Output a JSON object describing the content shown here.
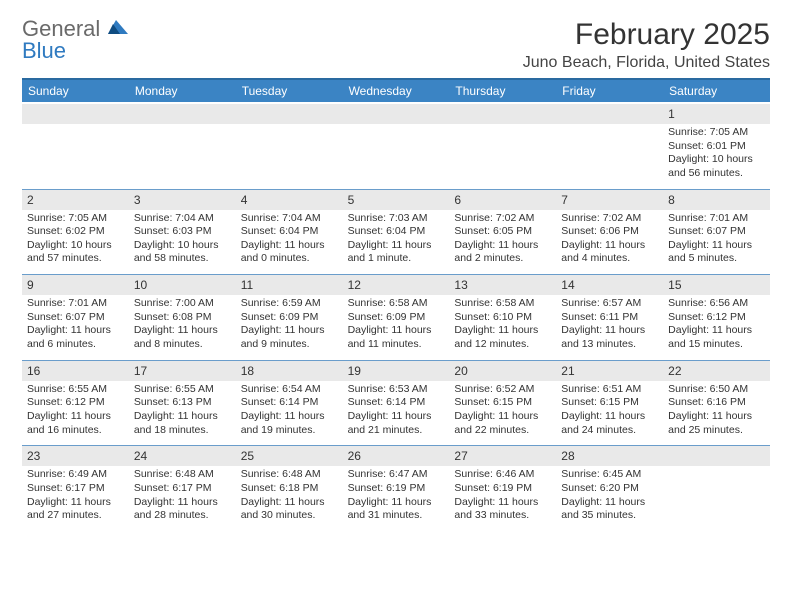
{
  "logo": {
    "text1": "General",
    "text2": "Blue"
  },
  "title": "February 2025",
  "location": "Juno Beach, Florida, United States",
  "colors": {
    "header_bg": "#3b84c4",
    "header_border": "#2a6aa0",
    "row_border": "#6a9dcb",
    "daynum_bg": "#e9e9e9",
    "text": "#333333",
    "logo_gray": "#6a6a6a",
    "logo_blue": "#2f7ac0"
  },
  "dayNames": [
    "Sunday",
    "Monday",
    "Tuesday",
    "Wednesday",
    "Thursday",
    "Friday",
    "Saturday"
  ],
  "grid": {
    "columns": 7,
    "rows": 5,
    "first_day_index": 6,
    "days_in_month": 28
  },
  "days": [
    {
      "n": 1,
      "sunrise": "7:05 AM",
      "sunset": "6:01 PM",
      "daylight": "10 hours and 56 minutes."
    },
    {
      "n": 2,
      "sunrise": "7:05 AM",
      "sunset": "6:02 PM",
      "daylight": "10 hours and 57 minutes."
    },
    {
      "n": 3,
      "sunrise": "7:04 AM",
      "sunset": "6:03 PM",
      "daylight": "10 hours and 58 minutes."
    },
    {
      "n": 4,
      "sunrise": "7:04 AM",
      "sunset": "6:04 PM",
      "daylight": "11 hours and 0 minutes."
    },
    {
      "n": 5,
      "sunrise": "7:03 AM",
      "sunset": "6:04 PM",
      "daylight": "11 hours and 1 minute."
    },
    {
      "n": 6,
      "sunrise": "7:02 AM",
      "sunset": "6:05 PM",
      "daylight": "11 hours and 2 minutes."
    },
    {
      "n": 7,
      "sunrise": "7:02 AM",
      "sunset": "6:06 PM",
      "daylight": "11 hours and 4 minutes."
    },
    {
      "n": 8,
      "sunrise": "7:01 AM",
      "sunset": "6:07 PM",
      "daylight": "11 hours and 5 minutes."
    },
    {
      "n": 9,
      "sunrise": "7:01 AM",
      "sunset": "6:07 PM",
      "daylight": "11 hours and 6 minutes."
    },
    {
      "n": 10,
      "sunrise": "7:00 AM",
      "sunset": "6:08 PM",
      "daylight": "11 hours and 8 minutes."
    },
    {
      "n": 11,
      "sunrise": "6:59 AM",
      "sunset": "6:09 PM",
      "daylight": "11 hours and 9 minutes."
    },
    {
      "n": 12,
      "sunrise": "6:58 AM",
      "sunset": "6:09 PM",
      "daylight": "11 hours and 11 minutes."
    },
    {
      "n": 13,
      "sunrise": "6:58 AM",
      "sunset": "6:10 PM",
      "daylight": "11 hours and 12 minutes."
    },
    {
      "n": 14,
      "sunrise": "6:57 AM",
      "sunset": "6:11 PM",
      "daylight": "11 hours and 13 minutes."
    },
    {
      "n": 15,
      "sunrise": "6:56 AM",
      "sunset": "6:12 PM",
      "daylight": "11 hours and 15 minutes."
    },
    {
      "n": 16,
      "sunrise": "6:55 AM",
      "sunset": "6:12 PM",
      "daylight": "11 hours and 16 minutes."
    },
    {
      "n": 17,
      "sunrise": "6:55 AM",
      "sunset": "6:13 PM",
      "daylight": "11 hours and 18 minutes."
    },
    {
      "n": 18,
      "sunrise": "6:54 AM",
      "sunset": "6:14 PM",
      "daylight": "11 hours and 19 minutes."
    },
    {
      "n": 19,
      "sunrise": "6:53 AM",
      "sunset": "6:14 PM",
      "daylight": "11 hours and 21 minutes."
    },
    {
      "n": 20,
      "sunrise": "6:52 AM",
      "sunset": "6:15 PM",
      "daylight": "11 hours and 22 minutes."
    },
    {
      "n": 21,
      "sunrise": "6:51 AM",
      "sunset": "6:15 PM",
      "daylight": "11 hours and 24 minutes."
    },
    {
      "n": 22,
      "sunrise": "6:50 AM",
      "sunset": "6:16 PM",
      "daylight": "11 hours and 25 minutes."
    },
    {
      "n": 23,
      "sunrise": "6:49 AM",
      "sunset": "6:17 PM",
      "daylight": "11 hours and 27 minutes."
    },
    {
      "n": 24,
      "sunrise": "6:48 AM",
      "sunset": "6:17 PM",
      "daylight": "11 hours and 28 minutes."
    },
    {
      "n": 25,
      "sunrise": "6:48 AM",
      "sunset": "6:18 PM",
      "daylight": "11 hours and 30 minutes."
    },
    {
      "n": 26,
      "sunrise": "6:47 AM",
      "sunset": "6:19 PM",
      "daylight": "11 hours and 31 minutes."
    },
    {
      "n": 27,
      "sunrise": "6:46 AM",
      "sunset": "6:19 PM",
      "daylight": "11 hours and 33 minutes."
    },
    {
      "n": 28,
      "sunrise": "6:45 AM",
      "sunset": "6:20 PM",
      "daylight": "11 hours and 35 minutes."
    }
  ],
  "labels": {
    "sunrise": "Sunrise:",
    "sunset": "Sunset:",
    "daylight": "Daylight:"
  },
  "typography": {
    "title_fontsize": 30,
    "location_fontsize": 16,
    "dayhead_fontsize": 12,
    "cell_fontsize": 10.5
  }
}
